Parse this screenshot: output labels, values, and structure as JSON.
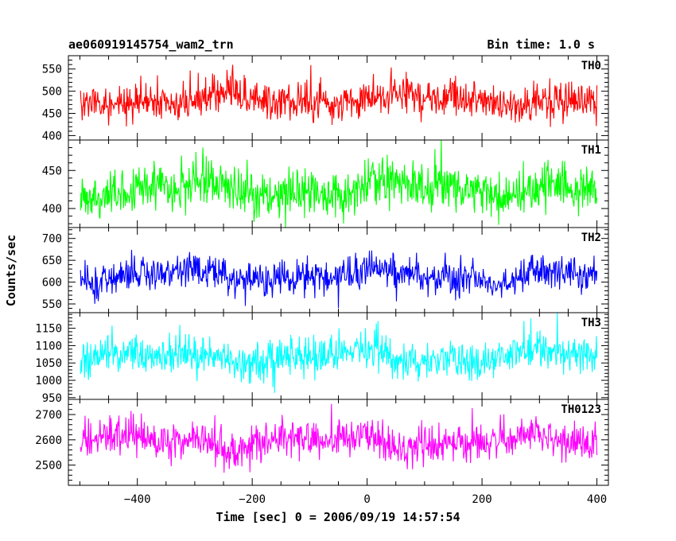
{
  "chart_data": {
    "type": "line",
    "title": "ae060919145754_wam2_trn",
    "subtitle": "Bin time: 1.0 s",
    "xlabel": "Time [sec] 0 = 2006/09/19 14:57:54",
    "ylabel": "Counts/sec",
    "xlim": [
      -520,
      420
    ],
    "x_ticks": [
      -400,
      -200,
      0,
      200,
      400
    ],
    "x_tick_labels": [
      "−400",
      "−200",
      "0",
      "200",
      "400"
    ],
    "x_start": -499,
    "x_end": 400,
    "bin_time": 1.0,
    "grid": false,
    "panels": [
      {
        "name": "TH0",
        "color": "#ff0000",
        "ylim": [
          390,
          580
        ],
        "yticks": [
          400,
          450,
          500,
          550
        ],
        "mean": 482,
        "amplitude": 40
      },
      {
        "name": "TH1",
        "color": "#00ff00",
        "ylim": [
          375,
          490
        ],
        "yticks": [
          400,
          450
        ],
        "mean": 425,
        "amplitude": 30
      },
      {
        "name": "TH2",
        "color": "#0000ff",
        "ylim": [
          530,
          725
        ],
        "yticks": [
          550,
          600,
          650,
          700
        ],
        "mean": 615,
        "amplitude": 38
      },
      {
        "name": "TH3",
        "color": "#00ffff",
        "ylim": [
          945,
          1195
        ],
        "yticks": [
          950,
          1000,
          1050,
          1100,
          1150
        ],
        "mean": 1070,
        "amplitude": 55
      },
      {
        "name": "TH0123",
        "color": "#ff00ff",
        "ylim": [
          2420,
          2760
        ],
        "yticks": [
          2500,
          2600,
          2700
        ],
        "mean": 2595,
        "amplitude": 70
      }
    ]
  }
}
